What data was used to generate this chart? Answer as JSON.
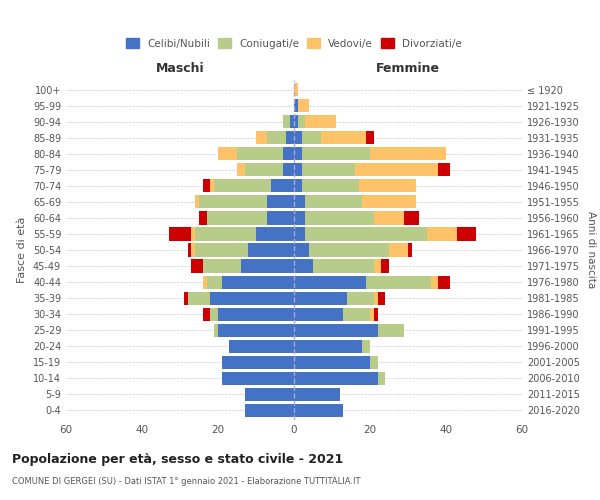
{
  "age_groups": [
    "0-4",
    "5-9",
    "10-14",
    "15-19",
    "20-24",
    "25-29",
    "30-34",
    "35-39",
    "40-44",
    "45-49",
    "50-54",
    "55-59",
    "60-64",
    "65-69",
    "70-74",
    "75-79",
    "80-84",
    "85-89",
    "90-94",
    "95-99",
    "100+"
  ],
  "birth_years": [
    "2016-2020",
    "2011-2015",
    "2006-2010",
    "2001-2005",
    "1996-2000",
    "1991-1995",
    "1986-1990",
    "1981-1985",
    "1976-1980",
    "1971-1975",
    "1966-1970",
    "1961-1965",
    "1956-1960",
    "1951-1955",
    "1946-1950",
    "1941-1945",
    "1936-1940",
    "1931-1935",
    "1926-1930",
    "1921-1925",
    "≤ 1920"
  ],
  "males": {
    "celibe": [
      13,
      13,
      19,
      19,
      17,
      20,
      20,
      22,
      19,
      14,
      12,
      10,
      7,
      7,
      6,
      3,
      3,
      2,
      1,
      0,
      0
    ],
    "coniugato": [
      0,
      0,
      0,
      0,
      0,
      1,
      2,
      6,
      4,
      10,
      14,
      16,
      16,
      18,
      15,
      10,
      12,
      5,
      2,
      0,
      0
    ],
    "vedovo": [
      0,
      0,
      0,
      0,
      0,
      0,
      0,
      0,
      1,
      0,
      1,
      1,
      0,
      1,
      1,
      2,
      5,
      3,
      0,
      0,
      0
    ],
    "divorziato": [
      0,
      0,
      0,
      0,
      0,
      0,
      2,
      1,
      0,
      3,
      1,
      6,
      2,
      0,
      2,
      0,
      0,
      0,
      0,
      0,
      0
    ]
  },
  "females": {
    "nubile": [
      13,
      12,
      22,
      20,
      18,
      22,
      13,
      14,
      19,
      5,
      4,
      3,
      3,
      3,
      2,
      2,
      2,
      2,
      1,
      1,
      0
    ],
    "coniugata": [
      0,
      0,
      2,
      2,
      2,
      7,
      7,
      7,
      17,
      16,
      21,
      32,
      18,
      15,
      15,
      14,
      18,
      5,
      2,
      0,
      0
    ],
    "vedova": [
      0,
      0,
      0,
      0,
      0,
      0,
      1,
      1,
      2,
      2,
      5,
      8,
      8,
      14,
      15,
      22,
      20,
      12,
      8,
      3,
      1
    ],
    "divorziata": [
      0,
      0,
      0,
      0,
      0,
      0,
      1,
      2,
      3,
      2,
      1,
      5,
      4,
      0,
      0,
      3,
      0,
      2,
      0,
      0,
      0
    ]
  },
  "colors": {
    "celibe": "#4472c4",
    "coniugato": "#b8cc8a",
    "vedovo": "#ffc266",
    "divorziato": "#cc0000"
  },
  "xlim": 60,
  "title": "Popolazione per età, sesso e stato civile - 2021",
  "subtitle": "COMUNE DI GERGEI (SU) - Dati ISTAT 1° gennaio 2021 - Elaborazione TUTTITALIA.IT",
  "xlabel_left": "Maschi",
  "xlabel_right": "Femmine",
  "ylabel_left": "Fasce di età",
  "ylabel_right": "Anni di nascita",
  "legend_labels": [
    "Celibi/Nubili",
    "Coniugati/e",
    "Vedovi/e",
    "Divorziati/e"
  ],
  "bg_color": "#ffffff",
  "grid_color": "#cccccc"
}
